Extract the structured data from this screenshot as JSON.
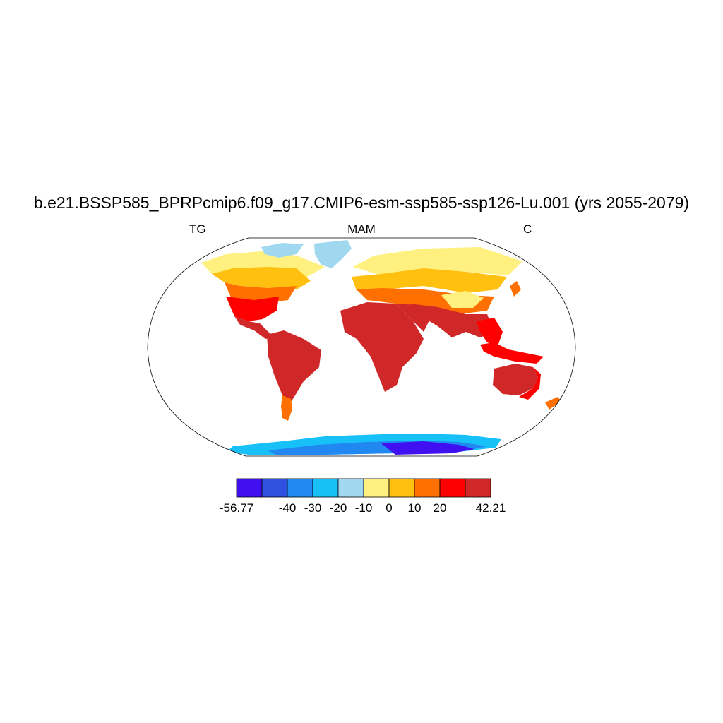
{
  "title": "b.e21.BSSP585_BPRPcmip6.f09_g17.CMIP6-esm-ssp585-ssp126-Lu.001 (yrs 2055-2079)",
  "subtitle_left": "TG",
  "subtitle_center": "MAM",
  "subtitle_right": "C",
  "colorbar": {
    "colors": [
      "#4010f0",
      "#3050e0",
      "#2088f0",
      "#18c0f8",
      "#a0d8f0",
      "#fff080",
      "#ffc010",
      "#ff7000",
      "#ff0000",
      "#d02828"
    ],
    "labels": [
      "-56.77",
      "-40",
      "-30",
      "-20",
      "-10",
      "0",
      "10",
      "20",
      "42.21"
    ]
  }
}
